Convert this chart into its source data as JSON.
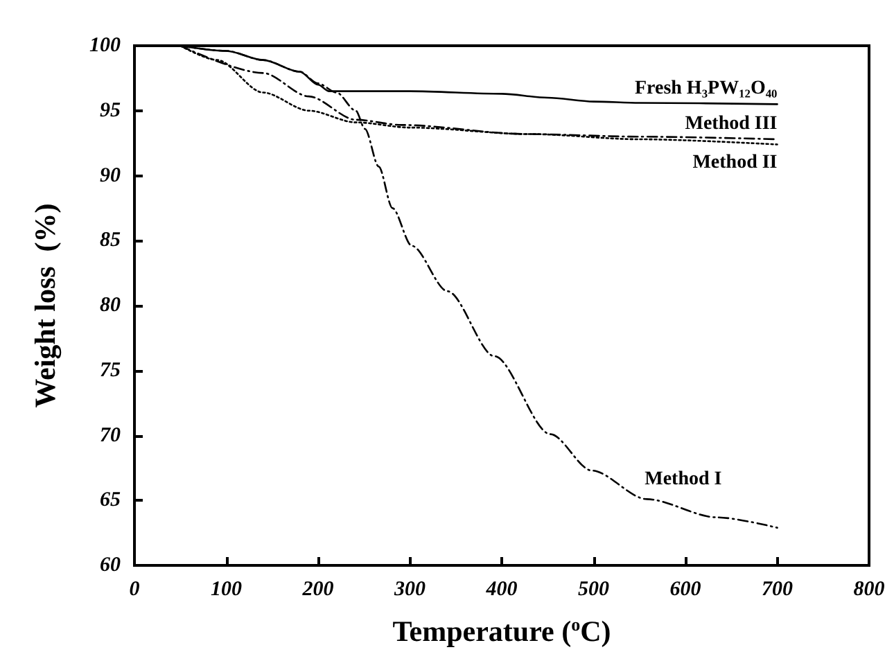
{
  "chart_data": {
    "type": "line",
    "xlabel": "Temperature ($^{o}$C)",
    "ylabel": "Weight loss  (%)",
    "xlim": [
      0,
      800
    ],
    "xticks": [
      0,
      100,
      200,
      300,
      400,
      500,
      600,
      700,
      800
    ],
    "ylim": [
      60,
      100
    ],
    "yticks": [
      60,
      65,
      70,
      75,
      80,
      85,
      90,
      95,
      100
    ],
    "grid": false,
    "legend": false,
    "marker": "none",
    "series": [
      {
        "name": "Fresh H₃PW₁₂O₄₀",
        "color": "#000000",
        "line_style": "solid",
        "x": [
          50,
          100,
          140,
          180,
          200,
          212,
          300,
          400,
          450,
          500,
          550,
          700
        ],
        "values": [
          100,
          99.6,
          98.9,
          98.0,
          97.0,
          96.5,
          96.5,
          96.3,
          96.0,
          95.7,
          95.6,
          95.5
        ]
      },
      {
        "name": "Method III",
        "color": "#000000",
        "line_style": "dashed",
        "x": [
          50,
          140,
          190,
          241,
          291,
          427,
          550,
          700
        ],
        "values": [
          100,
          97.9,
          96.1,
          94.3,
          93.9,
          93.2,
          93.0,
          92.8
        ]
      },
      {
        "name": "Method II",
        "color": "#000000",
        "line_style": "dotted",
        "x": [
          50,
          90,
          140,
          190,
          241,
          300,
          430,
          550,
          700
        ],
        "values": [
          100,
          98.9,
          96.4,
          95.0,
          94.1,
          93.7,
          93.2,
          92.8,
          92.4
        ]
      },
      {
        "name": "Method I",
        "color": "#000000",
        "line_style": "dashed",
        "x": [
          50,
          100,
          140,
          180,
          200,
          220,
          241,
          251,
          266,
          281,
          302,
          341,
          392,
          453,
          498,
          558,
          634,
          700
        ],
        "values": [
          100,
          99.6,
          98.9,
          98.0,
          97.1,
          96.4,
          95.0,
          93.6,
          90.7,
          87.5,
          84.6,
          81.1,
          76.1,
          70.1,
          67.3,
          65.1,
          63.7,
          62.9
        ]
      }
    ]
  }
}
